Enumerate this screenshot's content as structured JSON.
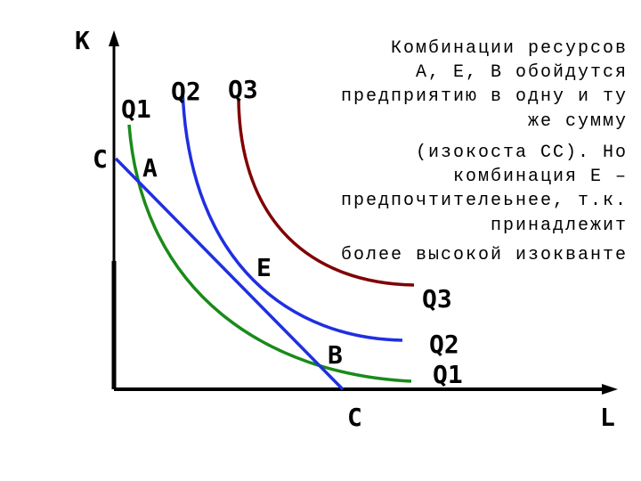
{
  "axes": {
    "y_label": "К",
    "x_label": "L"
  },
  "curve_labels_top": [
    "Q1",
    "Q2",
    "Q3"
  ],
  "curve_labels_right": [
    "Q3",
    "Q2",
    "Q1"
  ],
  "points": {
    "c_top": "С",
    "a": "А",
    "e": "Е",
    "b": "В",
    "c_bottom": "С"
  },
  "note": [
    "Комбинации ресурсов",
    "А, Е, В обойдутся",
    "предприятию в одну и ту",
    "же сумму",
    "(изокоста СС). Но",
    "комбинация Е –",
    "предпочтителеьнее, т.к.",
    "принадлежит",
    "более высокой изокванте"
  ]
}
